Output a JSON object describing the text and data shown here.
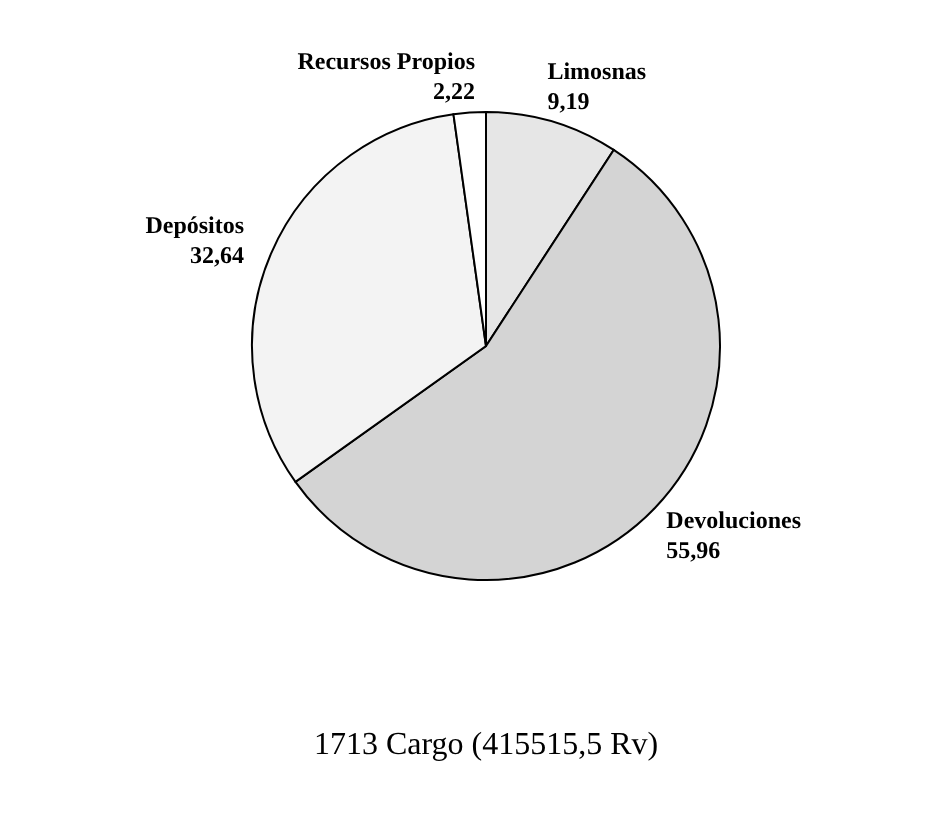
{
  "chart_data": {
    "type": "pie",
    "categories": [
      "Limosnas",
      "Devoluciones",
      "Depósitos",
      "Recursos Propios"
    ],
    "values": [
      9.19,
      55.96,
      32.64,
      2.22
    ],
    "value_labels": [
      "9,19",
      "55,96",
      "32,64",
      "2,22"
    ],
    "colors": [
      "#e6e6e6",
      "#d4d4d4",
      "#f3f3f3",
      "#ffffff"
    ],
    "annotations": [
      "1713 Cargo (415515,5 Rv)"
    ]
  }
}
